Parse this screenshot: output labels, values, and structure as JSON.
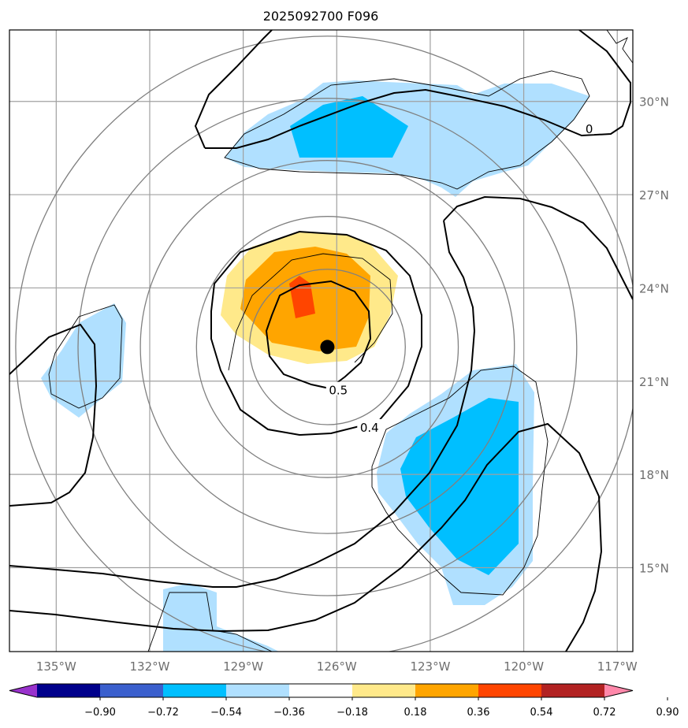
{
  "title": "2025092700 F096",
  "map": {
    "lon_range": [
      -136.5,
      -116.5
    ],
    "lat_range": [
      12.3,
      32.3
    ],
    "lat_ticks": [
      {
        "value": 30,
        "label": "30°N"
      },
      {
        "value": 27,
        "label": "27°N"
      },
      {
        "value": 24,
        "label": "24°N"
      },
      {
        "value": 21,
        "label": "21°N"
      },
      {
        "value": 18,
        "label": "18°N"
      },
      {
        "value": 15,
        "label": "15°N"
      }
    ],
    "lon_ticks": [
      {
        "value": -135,
        "label": "135°W"
      },
      {
        "value": -132,
        "label": "132°W"
      },
      {
        "value": -129,
        "label": "129°W"
      },
      {
        "value": -126,
        "label": "126°W"
      },
      {
        "value": -123,
        "label": "123°W"
      },
      {
        "value": -120,
        "label": "120°W"
      },
      {
        "value": -117,
        "label": "117°W"
      }
    ],
    "storm_center": {
      "lon": -126.3,
      "lat": 22.1
    },
    "range_ring_radii_deg": [
      2.5,
      4.2,
      6.0,
      8.0,
      10.0
    ],
    "contour_labels": [
      {
        "text": "0.5",
        "lon": -125.95,
        "lat": 20.7
      },
      {
        "text": "0.4",
        "lon": -124.95,
        "lat": 19.5
      },
      {
        "text": "0",
        "lon": -117.9,
        "lat": 29.1
      }
    ]
  },
  "colorbar": {
    "colors": [
      "#9932cc",
      "#00008b",
      "#3a5fcd",
      "#00bfff",
      "#b0e0ff",
      "#ffffff",
      "#ffe98a",
      "#ffa500",
      "#ff4500",
      "#b22222",
      "#ff88aa"
    ],
    "tick_labels": [
      "−0.90",
      "−0.72",
      "−0.54",
      "−0.36",
      "−0.18",
      "0.18",
      "0.36",
      "0.54",
      "0.72",
      "0.90"
    ]
  }
}
